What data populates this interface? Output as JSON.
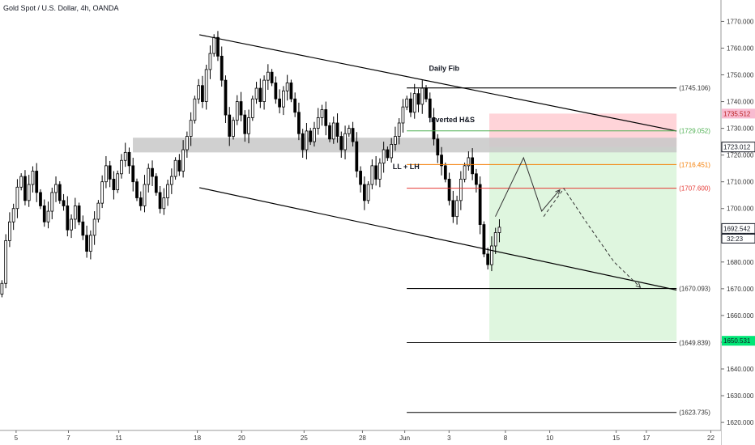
{
  "header": {
    "title": "Gold Spot / U.S. Dollar, 4h, OANDA"
  },
  "chart_data": {
    "type": "candlestick",
    "title": "Gold Spot / U.S. Dollar, 4h, OANDA",
    "ylim": [
      1617,
      1778
    ],
    "xlim": [
      0,
      35
    ],
    "y_ticks": [
      1620,
      1630,
      1640,
      1650,
      1660,
      1670,
      1680,
      1690,
      1700,
      1710,
      1720,
      1730,
      1740,
      1750,
      1760,
      1770
    ],
    "y_tick_labels": [
      "1620.000",
      "1630.000",
      "1640.000",
      "1650.000",
      "1660.000",
      "1670.000",
      "1680.000",
      "1690.000",
      "1700.000",
      "1710.000",
      "1720.000",
      "1730.000",
      "1740.000",
      "1750.000",
      "1760.000",
      "1770.000"
    ],
    "x_ticks": [
      {
        "day": 0.8,
        "label": "5"
      },
      {
        "day": 3.4,
        "label": "7"
      },
      {
        "day": 5.9,
        "label": "11"
      },
      {
        "day": 9.8,
        "label": "18"
      },
      {
        "day": 12.0,
        "label": "20"
      },
      {
        "day": 15.1,
        "label": "25"
      },
      {
        "day": 18.0,
        "label": "28"
      },
      {
        "day": 20.1,
        "label": "Jun"
      },
      {
        "day": 22.3,
        "label": "3"
      },
      {
        "day": 25.1,
        "label": "8"
      },
      {
        "day": 27.3,
        "label": "10"
      },
      {
        "day": 30.6,
        "label": "15"
      },
      {
        "day": 32.1,
        "label": "17"
      },
      {
        "day": 35.3,
        "label": "22"
      }
    ],
    "closes": [
      1672,
      1688,
      1695,
      1700,
      1708,
      1712,
      1703,
      1709,
      1714,
      1706,
      1701,
      1695,
      1699,
      1706,
      1709,
      1703,
      1701,
      1692,
      1696,
      1701,
      1695,
      1690,
      1684,
      1690,
      1696,
      1702,
      1710,
      1716,
      1711,
      1707,
      1713,
      1718,
      1721,
      1716,
      1710,
      1704,
      1701,
      1709,
      1715,
      1712,
      1706,
      1700,
      1704,
      1709,
      1712,
      1718,
      1714,
      1722,
      1727,
      1733,
      1741,
      1746,
      1740,
      1752,
      1758,
      1764,
      1757,
      1748,
      1735,
      1727,
      1733,
      1740,
      1735,
      1728,
      1734,
      1741,
      1745,
      1740,
      1748,
      1751,
      1747,
      1741,
      1738,
      1744,
      1747,
      1741,
      1736,
      1728,
      1722,
      1729,
      1725,
      1730,
      1734,
      1737,
      1731,
      1726,
      1732,
      1727,
      1722,
      1728,
      1730,
      1725,
      1714,
      1709,
      1703,
      1709,
      1716,
      1711,
      1717,
      1722,
      1719,
      1724,
      1727,
      1732,
      1738,
      1741,
      1736,
      1743,
      1739,
      1745,
      1741,
      1734,
      1726,
      1720,
      1716,
      1711,
      1703,
      1697,
      1703,
      1711,
      1716,
      1719,
      1713,
      1709,
      1694,
      1683,
      1679,
      1686,
      1691,
      1693
    ],
    "last_price": {
      "value": 1692.542,
      "label": "1692.542",
      "countdown": "32:23",
      "axis_text_behind": "16"
    },
    "hlines": [
      {
        "y": 1745.106,
        "label": "(1745.106)",
        "color": "#000000",
        "day_from": 20.2,
        "day_to": 33.6
      },
      {
        "y": 1729.052,
        "label": "(1729.052)",
        "color": "#4caf50",
        "day_from": 20.2,
        "day_to": 33.6
      },
      {
        "y": 1716.451,
        "label": "(1716.451)",
        "color": "#f57c00",
        "day_from": 20.2,
        "day_to": 33.6
      },
      {
        "y": 1707.6,
        "label": "(1707.600)",
        "color": "#e53935",
        "day_from": 20.2,
        "day_to": 33.6
      },
      {
        "y": 1670.093,
        "label": "(1670.093)",
        "color": "#000000",
        "day_from": 20.2,
        "day_to": 33.6
      },
      {
        "y": 1649.839,
        "label": "(1649.839)",
        "color": "#000000",
        "day_from": 20.2,
        "day_to": 33.6
      },
      {
        "y": 1623.735,
        "label": "(1623.735)",
        "color": "#000000",
        "day_from": 20.2,
        "day_to": 33.6
      }
    ],
    "zone": {
      "y_top": 1726.5,
      "y_bottom": 1721,
      "day_from": 6.6,
      "day_to": 33.6,
      "color": "#c8c8c8"
    },
    "position": {
      "day_from": 24.3,
      "day_to": 33.6,
      "stop": 1735.512,
      "entry": 1723.012,
      "target": 1650.531
    },
    "channel": [
      {
        "d1": 9.9,
        "p1": 1765,
        "d2": 33.6,
        "p2": 1729
      },
      {
        "d1": 9.9,
        "p1": 1707.8,
        "d2": 33.6,
        "p2": 1669.5
      }
    ],
    "annotations": [
      {
        "text": "Daily Fib",
        "day": 21.3,
        "y": 1751.5
      },
      {
        "text": "Inverted H&S",
        "day": 21.3,
        "y": 1732.3
      },
      {
        "text": "LL + LH",
        "day": 19.5,
        "y": 1714.7
      }
    ],
    "solid_path": [
      [
        24.6,
        1697
      ],
      [
        26.0,
        1719
      ],
      [
        26.9,
        1699
      ],
      [
        27.8,
        1707
      ]
    ],
    "dashed_path": [
      [
        27.0,
        1697
      ],
      [
        28.0,
        1707.5
      ],
      [
        29.2,
        1694
      ],
      [
        30.5,
        1680
      ],
      [
        31.8,
        1670.5
      ]
    ],
    "price_badges": [
      {
        "value": 1735.512,
        "label": "1735.512",
        "bg": "#f8bbd0",
        "fg": "#b71c1c"
      },
      {
        "value": 1723.012,
        "label": "1723.012",
        "bg": "#ffffff",
        "fg": "#131722",
        "border": "#131722"
      },
      {
        "value": 1650.531,
        "label": "1650.531",
        "bg": "#00e676",
        "fg": "#131722"
      }
    ],
    "colors": {
      "up": "#ffffff",
      "down": "#000000",
      "candle_border": "#000000",
      "stop_zone": "#ffcdd2",
      "target_zone": "#dcf5dc"
    }
  }
}
